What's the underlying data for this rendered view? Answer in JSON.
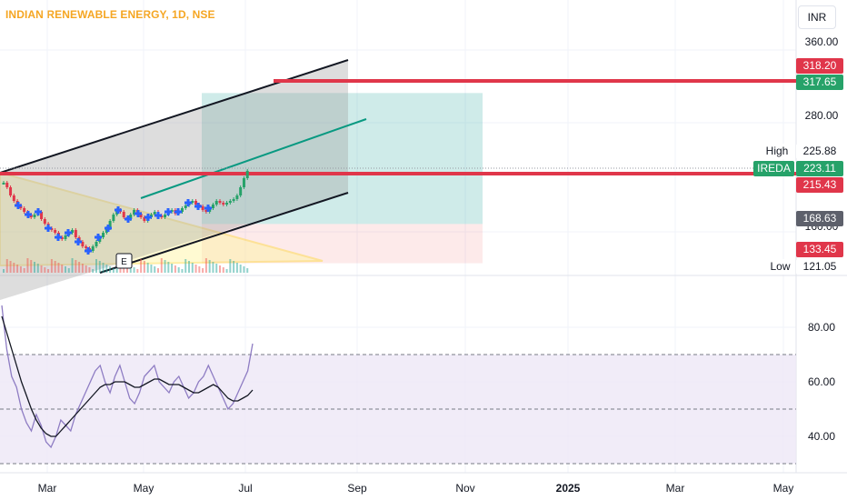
{
  "header": {
    "symbol_title": "INDIAN RENEWABLE ENERGY, 1D, NSE",
    "currency": "INR"
  },
  "colors": {
    "accent": "#f5a623",
    "red": "#e0364a",
    "green": "#26a269",
    "blue": "#2962ff",
    "rsi_line": "#8e7cc3",
    "rsi_band": "#ede7f6"
  },
  "chart_data": [
    {
      "type": "candlestick",
      "title": "INDIAN RENEWABLE ENERGY, 1D, NSE",
      "price_axis": {
        "ticks": [
          "360.00",
          "280.00",
          "160.00"
        ],
        "currency": "INR"
      },
      "time_axis": {
        "ticks": [
          "Mar",
          "May",
          "Jul",
          "Sep",
          "Nov",
          "2025",
          "Mar",
          "May"
        ]
      },
      "price_labels": [
        {
          "label": "",
          "value": "318.20",
          "color": "#e0364a"
        },
        {
          "label": "",
          "value": "317.65",
          "color": "#26a269"
        },
        {
          "label": "High",
          "value": "225.88",
          "color": "#ffffff"
        },
        {
          "label": "IREDA",
          "value": "223.11",
          "color": "#26a269"
        },
        {
          "label": "",
          "value": "215.43",
          "color": "#e0364a"
        },
        {
          "label": "",
          "value": "168.63",
          "color": "#5d606b"
        },
        {
          "label": "",
          "value": "133.45",
          "color": "#e0364a"
        },
        {
          "label": "Low",
          "value": "121.05",
          "color": "#ffffff"
        }
      ],
      "price_range": [
        110,
        380
      ],
      "closes": [
        210,
        205,
        196,
        190,
        185,
        182,
        178,
        175,
        172,
        175,
        178,
        170,
        165,
        160,
        158,
        155,
        150,
        148,
        152,
        155,
        158,
        150,
        145,
        140,
        138,
        135,
        140,
        145,
        150,
        155,
        160,
        168,
        175,
        180,
        178,
        172,
        170,
        175,
        180,
        176,
        172,
        168,
        172,
        175,
        178,
        174,
        172,
        175,
        178,
        180,
        176,
        178,
        182,
        185,
        188,
        190,
        186,
        184,
        180,
        178,
        182,
        186,
        190,
        188,
        186,
        188,
        190,
        192,
        196,
        205,
        215,
        223.11
      ],
      "event_marker": "E",
      "annotations": [
        {
          "type": "long_position",
          "entry": 168.63,
          "target": 317.65,
          "stop": 133.45
        },
        {
          "type": "parallel_channel"
        },
        {
          "type": "triangle"
        },
        {
          "type": "horizontal_line",
          "value": 318.2
        },
        {
          "type": "horizontal_line",
          "value": 215.43
        }
      ]
    },
    {
      "type": "line",
      "title": "",
      "ylim": [
        30,
        90
      ],
      "ticks": [
        "80.00",
        "60.00",
        "40.00"
      ],
      "band": [
        30,
        70
      ],
      "midline": 50,
      "series": [
        {
          "values": [
            88,
            72,
            62,
            58,
            50,
            45,
            42,
            48,
            44,
            38,
            36,
            40,
            46,
            44,
            42,
            48,
            52,
            56,
            60,
            64,
            66,
            60,
            56,
            62,
            66,
            60,
            54,
            52,
            56,
            62,
            64,
            66,
            60,
            58,
            56,
            60,
            62,
            58,
            54,
            56,
            60,
            62,
            66,
            62,
            58,
            54,
            50,
            52,
            56,
            60,
            64,
            74
          ]
        },
        {
          "values": [
            84,
            78,
            72,
            66,
            60,
            55,
            50,
            46,
            43,
            41,
            40,
            40,
            42,
            44,
            46,
            48,
            50,
            52,
            54,
            56,
            58,
            59,
            59,
            60,
            60,
            60,
            59,
            58,
            58,
            59,
            60,
            61,
            61,
            60,
            59,
            59,
            59,
            58,
            57,
            56,
            56,
            57,
            58,
            59,
            58,
            56,
            54,
            53,
            53,
            54,
            55,
            57
          ]
        }
      ]
    }
  ]
}
